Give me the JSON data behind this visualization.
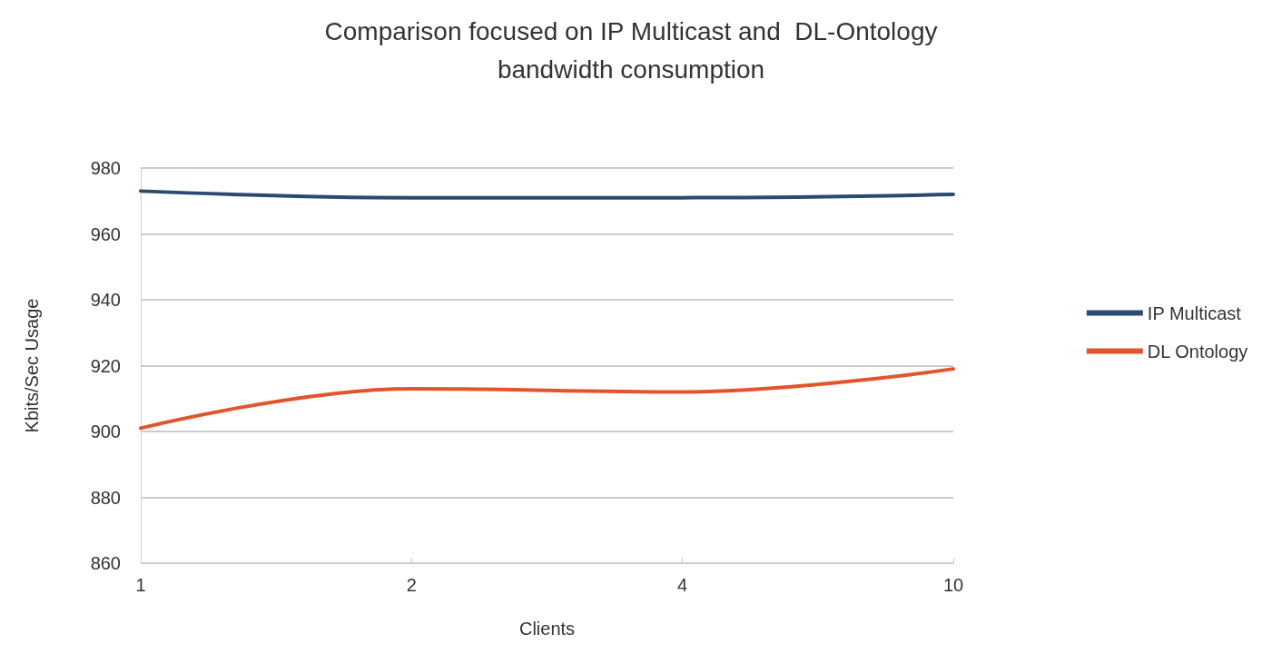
{
  "chart_data": {
    "type": "line",
    "title": "Comparison focused on IP Multicast and  DL-Ontology\nbandwidth consumption",
    "xlabel": "Clients",
    "ylabel": "Kbits/Sec Usage",
    "categories": [
      "1",
      "2",
      "4",
      "10"
    ],
    "series": [
      {
        "name": "IP Multicast",
        "color": "#2a4a72",
        "values": [
          973,
          971,
          971,
          972
        ]
      },
      {
        "name": "DL Ontology",
        "color": "#e4542c",
        "values": [
          901,
          913,
          912,
          919
        ]
      }
    ],
    "ylim": [
      860,
      980
    ],
    "yticks": [
      860,
      880,
      900,
      920,
      940,
      960,
      980
    ],
    "grid": "y",
    "legend": "right",
    "marker": "none",
    "line_style": "solid"
  }
}
